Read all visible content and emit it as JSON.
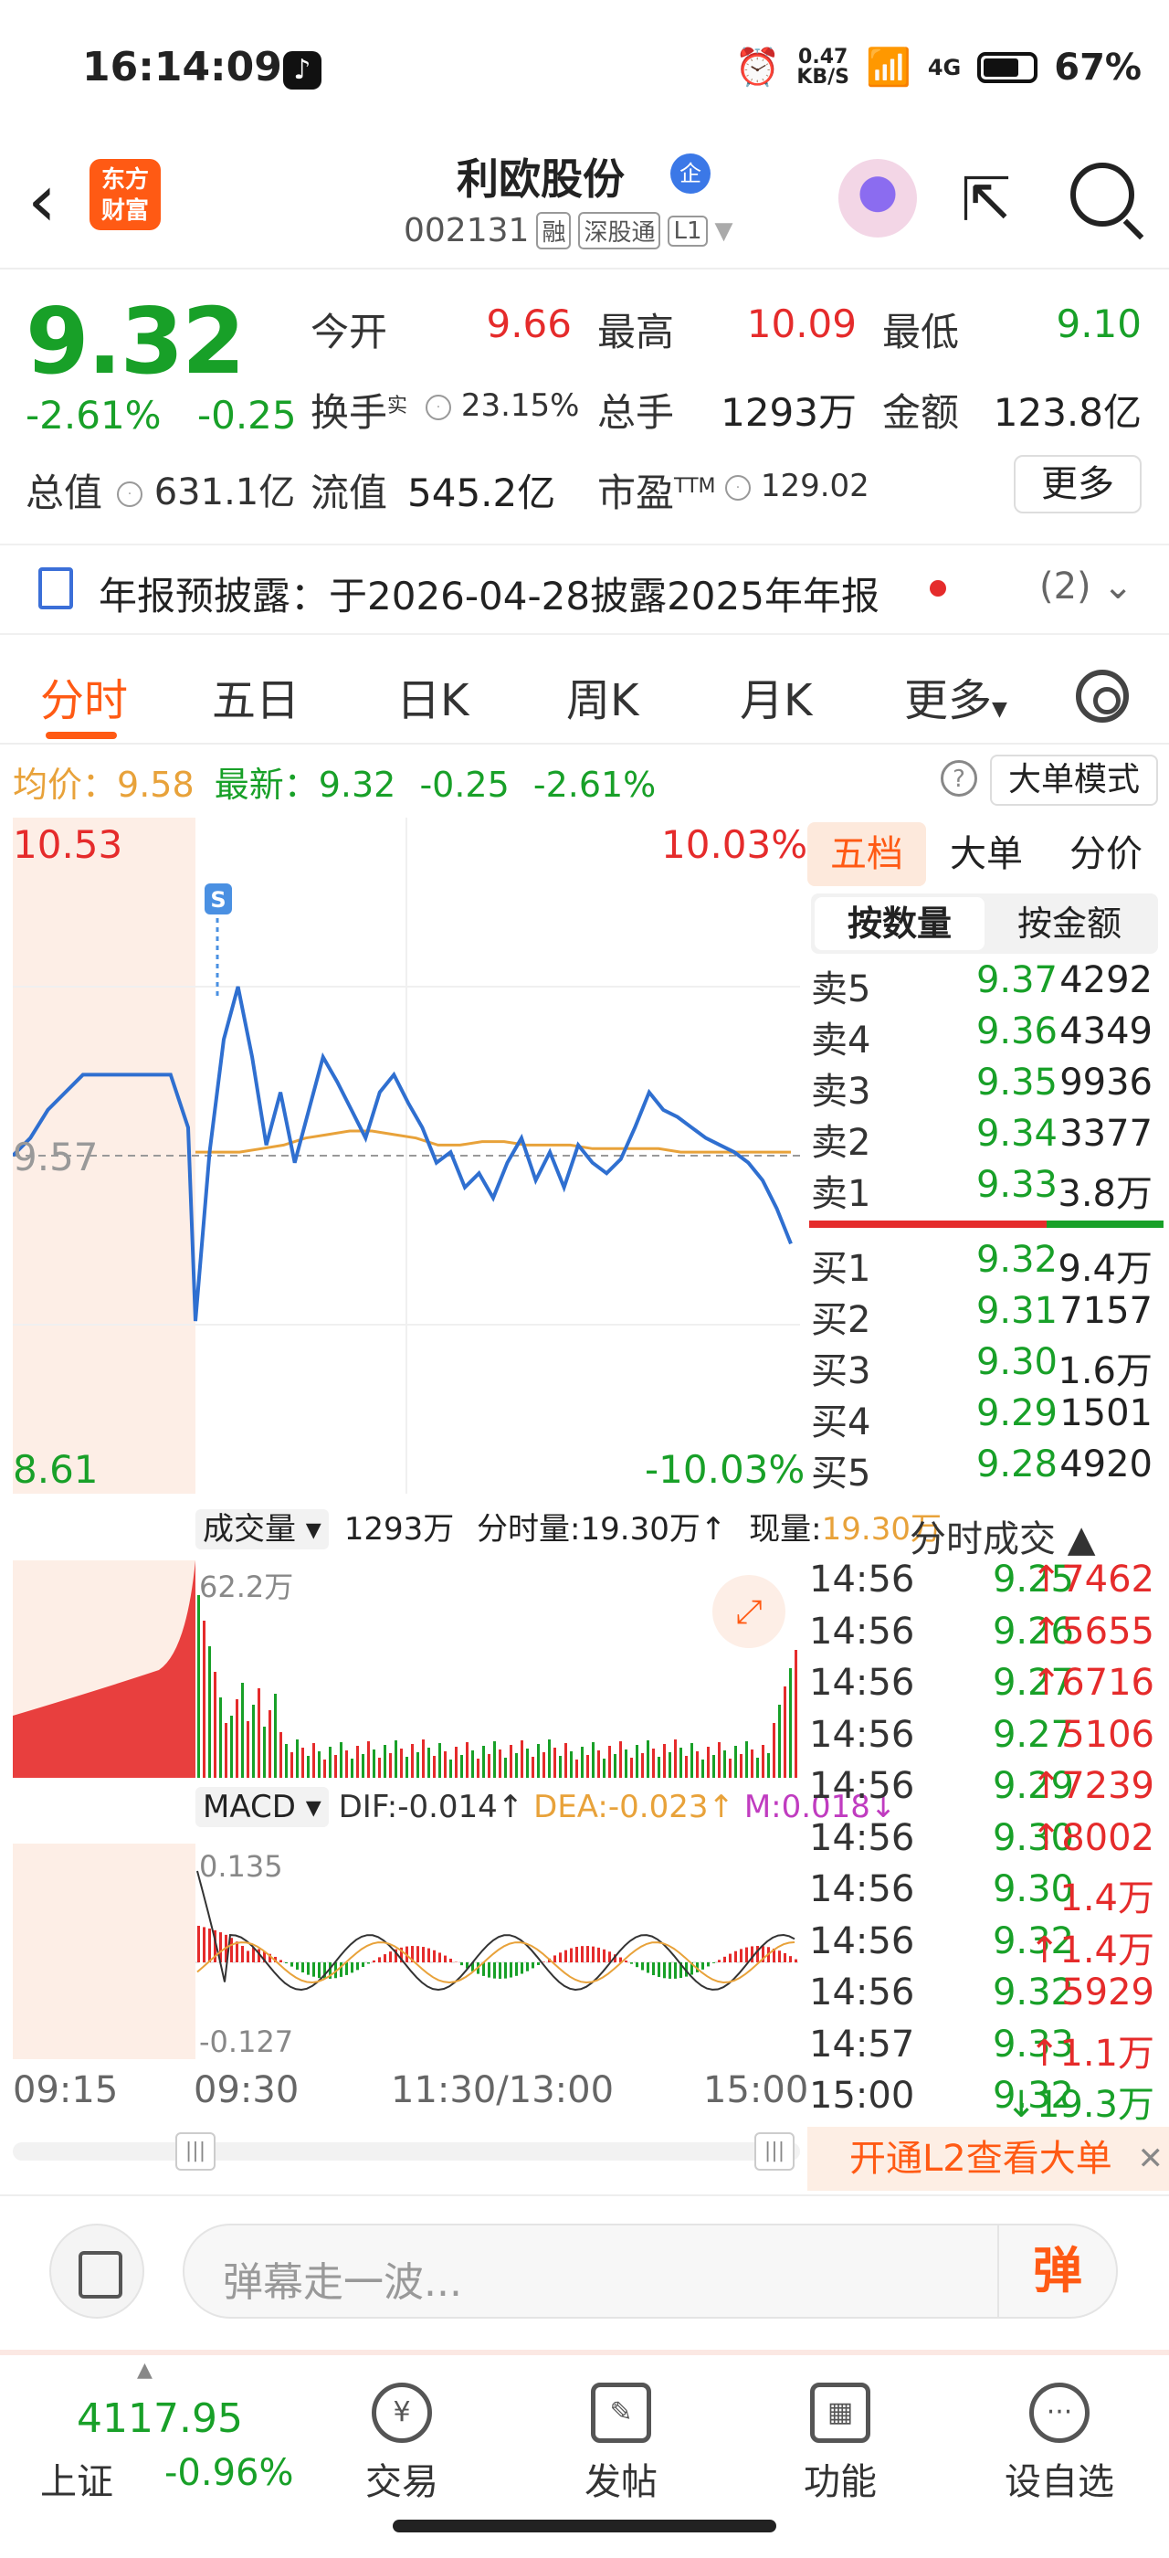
{
  "status_bar": {
    "time": "16:14:09",
    "net_speed": "0.47\nKB/S",
    "signal": "4G",
    "battery": "67%"
  },
  "header": {
    "logo_text": "东方\n财富",
    "title": "利欧股份",
    "title_badge": "企",
    "code": "002131",
    "tags": [
      "融",
      "深股通",
      "L1"
    ]
  },
  "quote": {
    "price": "9.32",
    "change_pct": "-2.61%",
    "change": "-0.25",
    "fields": {
      "open_label": "今开",
      "open": "9.66",
      "high_label": "最高",
      "high": "10.09",
      "low_label": "最低",
      "low": "9.10",
      "turnover_label": "换手",
      "turnover_sup": "实",
      "turnover": "23.15%",
      "volume_label": "总手",
      "volume": "1293万",
      "amount_label": "金额",
      "amount": "123.8亿",
      "mktcap_label": "总值",
      "mktcap": "631.1亿",
      "float_label": "流值",
      "float": "545.2亿",
      "pe_label": "市盈",
      "pe_sup": "TTM",
      "pe": "129.02"
    },
    "more_button": "更多"
  },
  "notice": {
    "text": "年报预披露：于2026-04-28披露2025年年报",
    "count": "(2)"
  },
  "tabs": {
    "items": [
      "分时",
      "五日",
      "日K",
      "周K",
      "月K",
      "更多"
    ],
    "active": "分时"
  },
  "avg_line": {
    "label_avg": "均价：",
    "avg": "9.58",
    "label_latest": "最新：",
    "latest": "9.32",
    "chg": "-0.25",
    "pct": "-2.61%"
  },
  "big_order_mode": "大单模式",
  "chart_data": {
    "type": "line",
    "title": "",
    "price_axis": {
      "max": "10.53",
      "min": "8.61",
      "mid": "9.57",
      "max_pct": "10.03%",
      "min_pct": "-10.03%"
    },
    "prev_close": 9.57,
    "ylim": [
      8.61,
      10.53
    ],
    "series": [
      {
        "values": [
          9.57,
          9.62,
          9.7,
          9.75,
          9.8,
          9.8,
          9.8,
          9.8,
          9.8,
          9.8,
          9.65,
          9.1,
          9.58,
          9.9,
          10.05,
          9.85,
          9.6,
          9.75,
          9.55,
          9.7,
          9.85,
          9.78,
          9.7,
          9.62,
          9.75,
          9.8,
          9.72,
          9.65,
          9.55,
          9.58,
          9.48,
          9.52,
          9.45,
          9.55,
          9.62,
          9.5,
          9.58,
          9.48,
          9.6,
          9.55,
          9.52,
          9.56,
          9.65,
          9.75,
          9.7,
          9.68,
          9.65,
          9.62,
          9.6,
          9.58,
          9.55,
          9.5,
          9.42,
          9.32
        ]
      },
      {
        "values": [
          9.58,
          9.58,
          9.58,
          9.59,
          9.6,
          9.62,
          9.63,
          9.64,
          9.64,
          9.63,
          9.62,
          9.6,
          9.6,
          9.61,
          9.61,
          9.6,
          9.6,
          9.6,
          9.59,
          9.59,
          9.59,
          9.59,
          9.58,
          9.58,
          9.58,
          9.58,
          9.58,
          9.58
        ]
      }
    ],
    "volume_panel": {
      "selector": "成交量",
      "total": "1293万",
      "minute_vol_label": "分时量:",
      "minute_vol": "19.30万",
      "now_vol_label": "现量:",
      "now_vol": "19.30万",
      "max_label": "62.2万"
    },
    "macd_panel": {
      "selector": "MACD",
      "dif": "DIF:-0.014",
      "dea": "DEA:-0.023",
      "m": "M:0.018",
      "max_label": "0.135",
      "min_label": "-0.127"
    },
    "time_axis": [
      "09:15",
      "09:30",
      "11:30/13:00",
      "15:00"
    ]
  },
  "order_book": {
    "tabs": [
      "五档",
      "大单",
      "分价"
    ],
    "segment": [
      "按数量",
      "按金额"
    ],
    "asks": [
      {
        "label": "卖5",
        "price": "9.37",
        "vol": "4292"
      },
      {
        "label": "卖4",
        "price": "9.36",
        "vol": "4349"
      },
      {
        "label": "卖3",
        "price": "9.35",
        "vol": "9936"
      },
      {
        "label": "卖2",
        "price": "9.34",
        "vol": "3377"
      },
      {
        "label": "卖1",
        "price": "9.33",
        "vol": "3.8万"
      }
    ],
    "bids": [
      {
        "label": "买1",
        "price": "9.32",
        "vol": "9.4万"
      },
      {
        "label": "买2",
        "price": "9.31",
        "vol": "7157"
      },
      {
        "label": "买3",
        "price": "9.30",
        "vol": "1.6万"
      },
      {
        "label": "买4",
        "price": "9.29",
        "vol": "1501"
      },
      {
        "label": "买5",
        "price": "9.28",
        "vol": "4920"
      }
    ]
  },
  "ticks": {
    "header": "分时成交",
    "rows": [
      {
        "time": "14:56",
        "price": "9.25",
        "vol": "7462",
        "dir": "↑"
      },
      {
        "time": "14:56",
        "price": "9.26",
        "vol": "5655",
        "dir": "↑"
      },
      {
        "time": "14:56",
        "price": "9.27",
        "vol": "6716",
        "dir": "↑"
      },
      {
        "time": "14:56",
        "price": "9.27",
        "vol": "5106",
        "dir": ""
      },
      {
        "time": "14:56",
        "price": "9.29",
        "vol": "7239",
        "dir": "↑"
      },
      {
        "time": "14:56",
        "price": "9.30",
        "vol": "8002",
        "dir": "↑"
      },
      {
        "time": "14:56",
        "price": "9.30",
        "vol": "1.4万",
        "dir": ""
      },
      {
        "time": "14:56",
        "price": "9.32",
        "vol": "1.4万",
        "dir": "↑"
      },
      {
        "time": "14:56",
        "price": "9.32",
        "vol": "5929",
        "dir": ""
      },
      {
        "time": "14:57",
        "price": "9.33",
        "vol": "1.1万",
        "dir": "↑"
      },
      {
        "time": "15:00",
        "price": "9.32",
        "vol": "19.3万",
        "dir": "↓"
      }
    ],
    "l2_banner": "开通L2查看大单"
  },
  "comment_bar": {
    "placeholder": "弹幕走一波...",
    "danmu": "弹"
  },
  "bottom_nav": {
    "index_value": "4117.95",
    "index_name": "上证",
    "index_chg": "-0.96%",
    "items": [
      "交易",
      "发帖",
      "功能",
      "设自选"
    ]
  },
  "colors": {
    "up": "#e52b2b",
    "down": "#18a028",
    "accent": "#ff5a14",
    "avg_line": "#e8a23a",
    "price_line": "#2f6fd0"
  }
}
